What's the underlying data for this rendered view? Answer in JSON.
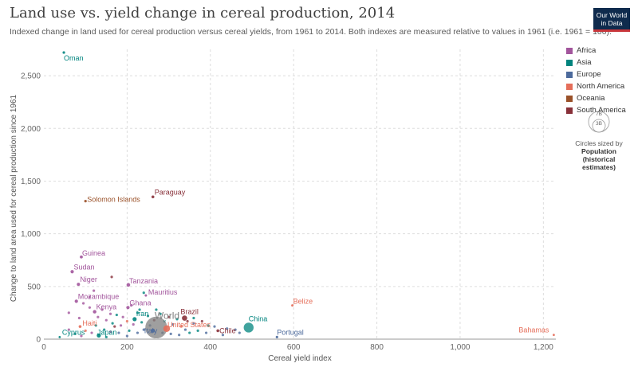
{
  "header": {
    "title": "Land use vs. yield change in cereal production, 2014",
    "subtitle": "Indexed change in land used for cereal production versus cereal yields, from 1961 to 2014. Both indexes are measured relative to values in 1961 (i.e. 1961 = 100).",
    "logo_line1": "Our World",
    "logo_line2": "in Data"
  },
  "colors": {
    "Africa": "#a2559c",
    "Asia": "#00847e",
    "Europe": "#4c6a9c",
    "North America": "#e56e5a",
    "Oceania": "#9a5129",
    "South America": "#883039",
    "World": "#7f7f7f"
  },
  "legend": {
    "items": [
      "Africa",
      "Asia",
      "Europe",
      "North America",
      "Oceania",
      "South America"
    ],
    "size_title": "Circles sized by",
    "size_bold": "Population",
    "size_bold2": "(historical",
    "size_bold3": "estimates)",
    "size_big": "7B",
    "size_small": "3B"
  },
  "chart_data": {
    "type": "scatter",
    "xlabel": "Cereal yield index",
    "ylabel": "Change to land area used for cereal production since 1961",
    "xlim": [
      0,
      1230
    ],
    "ylim": [
      0,
      2750
    ],
    "xticks": [
      0,
      200,
      400,
      600,
      800,
      1000,
      1200
    ],
    "xtick_labels": [
      "0",
      "200",
      "400",
      "600",
      "800",
      "1,000",
      "1,200"
    ],
    "yticks": [
      0,
      500,
      1000,
      1500,
      2000,
      2500
    ],
    "ytick_labels": [
      "0",
      "500",
      "1,000",
      "1,500",
      "2,000",
      "2,500"
    ],
    "grid": true,
    "legend_position": "right",
    "labeled_points": [
      {
        "name": "Oman",
        "x": 48,
        "y": 2720,
        "region": "Asia",
        "r": 1.6
      },
      {
        "name": "Paraguay",
        "x": 262,
        "y": 1350,
        "region": "South America",
        "r": 1.8
      },
      {
        "name": "Solomon Islands",
        "x": 100,
        "y": 1310,
        "region": "Oceania",
        "r": 1.6
      },
      {
        "name": "Guinea",
        "x": 90,
        "y": 780,
        "region": "Africa",
        "r": 1.9
      },
      {
        "name": "Sudan",
        "x": 68,
        "y": 640,
        "region": "Africa",
        "r": 2.1
      },
      {
        "name": "Niger",
        "x": 83,
        "y": 520,
        "region": "Africa",
        "r": 2.0
      },
      {
        "name": "Tanzania",
        "x": 203,
        "y": 515,
        "region": "Africa",
        "r": 2.3
      },
      {
        "name": "Mauritius",
        "x": 245,
        "y": 415,
        "region": "Africa",
        "r": 1.5
      },
      {
        "name": "Mozambique",
        "x": 78,
        "y": 360,
        "region": "Africa",
        "r": 2.1
      },
      {
        "name": "Belize",
        "x": 597,
        "y": 320,
        "region": "North America",
        "r": 1.5
      },
      {
        "name": "Ghana",
        "x": 202,
        "y": 300,
        "region": "Africa",
        "r": 2.1
      },
      {
        "name": "Kenya",
        "x": 122,
        "y": 260,
        "region": "Africa",
        "r": 2.2
      },
      {
        "name": "Brazil",
        "x": 338,
        "y": 200,
        "region": "South America",
        "r": 3.3
      },
      {
        "name": "Iran",
        "x": 218,
        "y": 190,
        "region": "Asia",
        "r": 2.6
      },
      {
        "name": "World",
        "x": 270,
        "y": 110,
        "region": "World",
        "r": 14
      },
      {
        "name": "Haiti",
        "x": 87,
        "y": 120,
        "region": "North America",
        "r": 1.8
      },
      {
        "name": "China",
        "x": 492,
        "y": 110,
        "region": "Asia",
        "r": 6.5
      },
      {
        "name": "United States",
        "x": 295,
        "y": 100,
        "region": "North America",
        "r": 4.2
      },
      {
        "name": "Italy",
        "x": 262,
        "y": 80,
        "region": "Europe",
        "r": 2.5
      },
      {
        "name": "Chile",
        "x": 418,
        "y": 80,
        "region": "South America",
        "r": 1.8
      },
      {
        "name": "Japan",
        "x": 132,
        "y": 35,
        "region": "Asia",
        "r": 2.6
      },
      {
        "name": "Cyprus",
        "x": 38,
        "y": 20,
        "region": "Asia",
        "r": 1.4
      },
      {
        "name": "Portugal",
        "x": 560,
        "y": 20,
        "region": "Europe",
        "r": 1.6
      },
      {
        "name": "Bahamas",
        "x": 1225,
        "y": 40,
        "region": "North America",
        "r": 1.4
      }
    ],
    "other_points": [
      {
        "x": 163,
        "y": 590,
        "region": "South America"
      },
      {
        "x": 120,
        "y": 460,
        "region": "Africa"
      },
      {
        "x": 240,
        "y": 440,
        "region": "Asia"
      },
      {
        "x": 95,
        "y": 340,
        "region": "Africa"
      },
      {
        "x": 60,
        "y": 250,
        "region": "Africa"
      },
      {
        "x": 110,
        "y": 300,
        "region": "Africa"
      },
      {
        "x": 140,
        "y": 280,
        "region": "Africa"
      },
      {
        "x": 175,
        "y": 230,
        "region": "Asia"
      },
      {
        "x": 190,
        "y": 210,
        "region": "Africa"
      },
      {
        "x": 225,
        "y": 250,
        "region": "Asia"
      },
      {
        "x": 250,
        "y": 220,
        "region": "Asia"
      },
      {
        "x": 280,
        "y": 240,
        "region": "Asia"
      },
      {
        "x": 300,
        "y": 210,
        "region": "South America"
      },
      {
        "x": 320,
        "y": 190,
        "region": "Asia"
      },
      {
        "x": 345,
        "y": 170,
        "region": "South America"
      },
      {
        "x": 360,
        "y": 150,
        "region": "Europe"
      },
      {
        "x": 380,
        "y": 170,
        "region": "South America"
      },
      {
        "x": 395,
        "y": 130,
        "region": "Asia"
      },
      {
        "x": 410,
        "y": 120,
        "region": "Europe"
      },
      {
        "x": 440,
        "y": 100,
        "region": "Europe"
      },
      {
        "x": 460,
        "y": 90,
        "region": "Europe"
      },
      {
        "x": 150,
        "y": 180,
        "region": "Africa"
      },
      {
        "x": 165,
        "y": 150,
        "region": "Asia"
      },
      {
        "x": 185,
        "y": 130,
        "region": "Africa"
      },
      {
        "x": 200,
        "y": 170,
        "region": "North America"
      },
      {
        "x": 215,
        "y": 140,
        "region": "Africa"
      },
      {
        "x": 235,
        "y": 160,
        "region": "Asia"
      },
      {
        "x": 255,
        "y": 130,
        "region": "Europe"
      },
      {
        "x": 310,
        "y": 140,
        "region": "Europe"
      },
      {
        "x": 330,
        "y": 120,
        "region": "North America"
      },
      {
        "x": 340,
        "y": 90,
        "region": "Europe"
      },
      {
        "x": 370,
        "y": 80,
        "region": "Asia"
      },
      {
        "x": 100,
        "y": 80,
        "region": "North America"
      },
      {
        "x": 115,
        "y": 60,
        "region": "Africa"
      },
      {
        "x": 125,
        "y": 130,
        "region": "Asia"
      },
      {
        "x": 145,
        "y": 90,
        "region": "Asia"
      },
      {
        "x": 160,
        "y": 70,
        "region": "Africa"
      },
      {
        "x": 180,
        "y": 60,
        "region": "Europe"
      },
      {
        "x": 205,
        "y": 80,
        "region": "Asia"
      },
      {
        "x": 225,
        "y": 60,
        "region": "Europe"
      },
      {
        "x": 240,
        "y": 90,
        "region": "Europe"
      },
      {
        "x": 285,
        "y": 60,
        "region": "Europe"
      },
      {
        "x": 305,
        "y": 50,
        "region": "Europe"
      },
      {
        "x": 325,
        "y": 40,
        "region": "Europe"
      },
      {
        "x": 350,
        "y": 60,
        "region": "Asia"
      },
      {
        "x": 390,
        "y": 60,
        "region": "Europe"
      },
      {
        "x": 430,
        "y": 40,
        "region": "Europe"
      },
      {
        "x": 470,
        "y": 60,
        "region": "Europe"
      },
      {
        "x": 60,
        "y": 90,
        "region": "Africa"
      },
      {
        "x": 75,
        "y": 50,
        "region": "Asia"
      },
      {
        "x": 90,
        "y": 30,
        "region": "Africa"
      },
      {
        "x": 150,
        "y": 20,
        "region": "Asia"
      },
      {
        "x": 200,
        "y": 30,
        "region": "Europe"
      },
      {
        "x": 170,
        "y": 120,
        "region": "South America"
      },
      {
        "x": 265,
        "y": 180,
        "region": "South America"
      },
      {
        "x": 290,
        "y": 170,
        "region": "Asia"
      },
      {
        "x": 360,
        "y": 200,
        "region": "Asia"
      },
      {
        "x": 130,
        "y": 210,
        "region": "Africa"
      },
      {
        "x": 85,
        "y": 200,
        "region": "Africa"
      },
      {
        "x": 210,
        "y": 320,
        "region": "Africa"
      },
      {
        "x": 230,
        "y": 280,
        "region": "Asia"
      },
      {
        "x": 110,
        "y": 400,
        "region": "Africa"
      },
      {
        "x": 160,
        "y": 240,
        "region": "Africa"
      },
      {
        "x": 270,
        "y": 280,
        "region": "Asia"
      }
    ]
  }
}
